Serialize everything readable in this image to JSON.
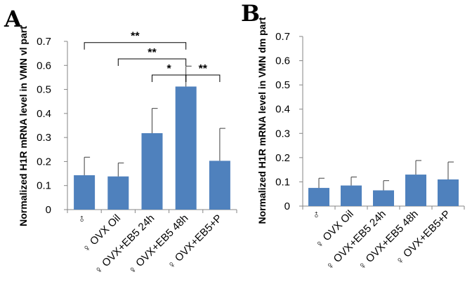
{
  "chart_data": [
    {
      "type": "bar",
      "panel": "A",
      "ylabel": "Normalized H1R mRNA level in VMN vl part",
      "ylim": [
        0,
        0.7
      ],
      "yticks": [
        "0",
        "0.1",
        "0.2",
        "0.3",
        "0.4",
        "0.5",
        "0.6",
        "0.7"
      ],
      "categories": [
        "♂",
        "♀ OVX Oil",
        "♀ OVX+EB5 24h",
        "♀ OVX+EB5 48h",
        "♀ OVX+EB5+P"
      ],
      "values": [
        0.143,
        0.138,
        0.318,
        0.512,
        0.203
      ],
      "errors": [
        0.075,
        0.056,
        0.103,
        0.085,
        0.135
      ],
      "bar_color": "#4f81bd",
      "significance": [
        {
          "from": 0,
          "to": 3,
          "label": "**",
          "y": 0.695
        },
        {
          "from": 1,
          "to": 3,
          "label": "**",
          "y": 0.627
        },
        {
          "from": 2,
          "to": 3,
          "label": "*",
          "y": 0.56
        },
        {
          "from": 3,
          "to": 4,
          "label": "**",
          "y": 0.56
        }
      ]
    },
    {
      "type": "bar",
      "panel": "B",
      "ylabel": "Normalized H1R mRNA level in VMN dm part",
      "ylim": [
        0,
        0.7
      ],
      "yticks": [
        "0",
        "0.1",
        "0.2",
        "0.3",
        "0.4",
        "0.5",
        "0.6",
        "0.7"
      ],
      "categories": [
        "♂",
        "♀ OVX Oil",
        "♀ OVX+EB5 24h",
        "♀ OVX+EB5 48h",
        "♀ OVX+EB5+P"
      ],
      "values": [
        0.075,
        0.085,
        0.065,
        0.13,
        0.11
      ],
      "errors": [
        0.04,
        0.035,
        0.04,
        0.058,
        0.072
      ],
      "bar_color": "#4f81bd",
      "significance": []
    }
  ]
}
